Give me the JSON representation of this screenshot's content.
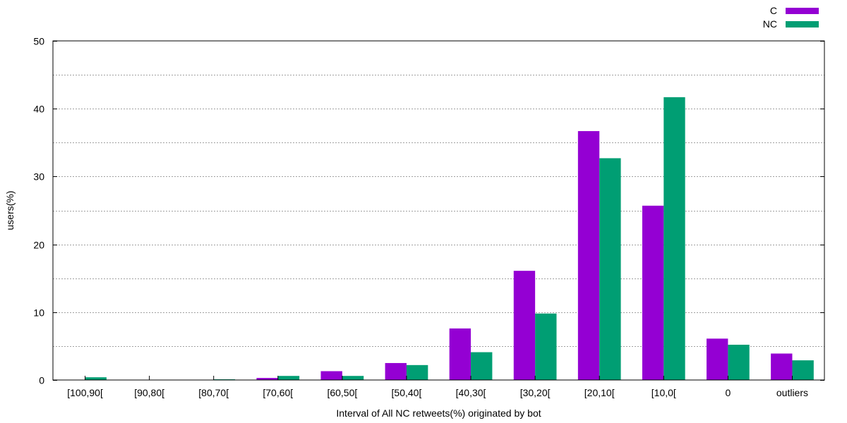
{
  "chart_data": {
    "type": "bar",
    "title": "",
    "xlabel": "Interval of All NC retweets(%) originated by bot",
    "ylabel": "users(%)",
    "ylim": [
      0,
      50
    ],
    "yticks": [
      0,
      10,
      20,
      30,
      40,
      50
    ],
    "grid": true,
    "legend_position": "top-right",
    "categories": [
      "[100,90[",
      "[90,80[",
      "[80,70[",
      "[70,60[",
      "[60,50[",
      "[50,40[",
      "[40,30[",
      "[30,20[",
      "[20,10[",
      "[10,0[",
      "0",
      "outliers"
    ],
    "series": [
      {
        "name": "C",
        "color": "#9400d3",
        "values": [
          0,
          0,
          0,
          0.3,
          1.3,
          2.5,
          7.6,
          16.1,
          36.7,
          25.7,
          6.1,
          3.9
        ]
      },
      {
        "name": "NC",
        "color": "#009e73",
        "values": [
          0.4,
          0,
          0.1,
          0.6,
          0.6,
          2.2,
          4.1,
          9.8,
          32.7,
          41.7,
          5.2,
          2.9
        ]
      }
    ]
  }
}
